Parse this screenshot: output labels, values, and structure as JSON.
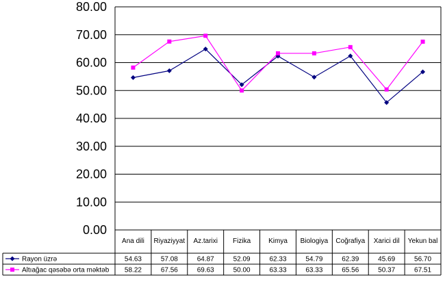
{
  "chart_data": {
    "type": "line",
    "title": "",
    "xlabel": "",
    "ylabel": "",
    "ylim": [
      0,
      80
    ],
    "yticks": [
      "0.00",
      "10.00",
      "20.00",
      "30.00",
      "40.00",
      "50.00",
      "60.00",
      "70.00",
      "80.00"
    ],
    "grid": true,
    "legend": "data-table",
    "categories": [
      "Ana dili",
      "Riyaziyyat",
      "Az.tarixi",
      "Fizika",
      "Kimya",
      "Biologiya",
      "Coğrafiya",
      "Xarici dil",
      "Yekun bal"
    ],
    "series": [
      {
        "name": "Rayon üzrə",
        "color": "#000080",
        "marker": "diamond",
        "values": [
          54.63,
          57.08,
          64.87,
          52.09,
          62.33,
          54.79,
          62.39,
          45.69,
          56.7
        ],
        "labels": [
          "54.63",
          "57.08",
          "64.87",
          "52.09",
          "62.33",
          "54.79",
          "62.39",
          "45.69",
          "56.70"
        ]
      },
      {
        "name": "Altıağac qəsəbə  orta məktəb",
        "color": "#ff00ff",
        "marker": "square",
        "values": [
          58.22,
          67.56,
          69.63,
          50.0,
          63.33,
          63.33,
          65.56,
          50.37,
          67.51
        ],
        "labels": [
          "58.22",
          "67.56",
          "69.63",
          "50.00",
          "63.33",
          "63.33",
          "65.56",
          "50.37",
          "67.51"
        ]
      }
    ]
  }
}
